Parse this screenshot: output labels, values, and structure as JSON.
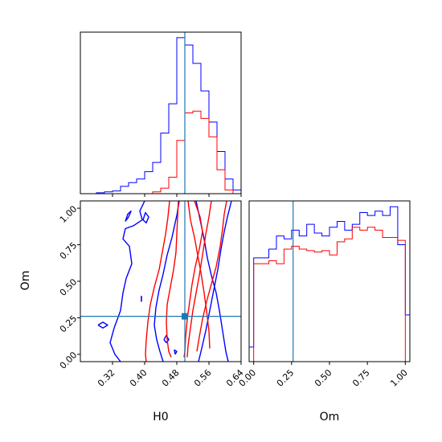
{
  "colors": {
    "series_a": "#0000ff",
    "series_b": "#ff0000",
    "truth": "#1f77b4",
    "axis": "#000000"
  },
  "chart_data": [
    {
      "id": "h0-marginal",
      "type": "histogram",
      "parameter": "H0",
      "truth": 0.5,
      "xlim": [
        0.24,
        0.64
      ],
      "bin_edges": [
        0.24,
        0.26,
        0.28,
        0.3,
        0.32,
        0.34,
        0.36,
        0.38,
        0.4,
        0.42,
        0.44,
        0.46,
        0.48,
        0.5,
        0.52,
        0.54,
        0.56,
        0.58,
        0.6,
        0.62,
        0.64
      ],
      "series": [
        {
          "color": "#0000ff",
          "values": [
            0,
            0,
            0.5,
            1,
            1.5,
            4,
            6,
            8,
            12,
            17,
            33,
            49,
            85,
            81,
            71,
            56,
            39,
            23,
            8,
            2
          ]
        },
        {
          "color": "#ff0000",
          "values": [
            0,
            0,
            0,
            0,
            0,
            0,
            0,
            0,
            0,
            1,
            3,
            9,
            29,
            44,
            45,
            41,
            31,
            13,
            2,
            0
          ]
        }
      ]
    },
    {
      "id": "om-marginal",
      "type": "histogram",
      "parameter": "Om",
      "truth": 0.26,
      "xlim": [
        -0.03,
        1.03
      ],
      "xticks": [
        "0.00",
        "0.25",
        "0.50",
        "0.75",
        "1.00"
      ],
      "xlabel": "Om",
      "bin_edges": [
        -0.03,
        0.0,
        0.05,
        0.1,
        0.15,
        0.2,
        0.25,
        0.3,
        0.35,
        0.4,
        0.45,
        0.5,
        0.55,
        0.6,
        0.65,
        0.7,
        0.75,
        0.8,
        0.85,
        0.9,
        0.95,
        1.0,
        1.03
      ],
      "series": [
        {
          "color": "#0000ff",
          "values": [
            10,
            71,
            71,
            77,
            86,
            84,
            90,
            86,
            94,
            88,
            86,
            92,
            96,
            90,
            94,
            102,
            100,
            103,
            100,
            106,
            80,
            32
          ]
        },
        {
          "color": "#ff0000",
          "values": [
            0,
            67,
            67,
            69,
            67,
            77,
            79,
            77,
            76,
            75,
            76,
            73,
            82,
            84,
            92,
            90,
            92,
            90,
            85,
            85,
            83,
            0
          ]
        }
      ]
    },
    {
      "id": "h0-om-joint",
      "type": "contour",
      "x_parameter": "H0",
      "y_parameter": "Om",
      "truth": {
        "H0": 0.5,
        "Om": 0.26
      },
      "xlim": [
        0.24,
        0.64
      ],
      "ylim": [
        -0.05,
        1.05
      ],
      "xticks": [
        "0.32",
        "0.40",
        "0.48",
        "0.56",
        "0.64"
      ],
      "yticks": [
        "0.00",
        "0.25",
        "0.50",
        "0.75",
        "1.00"
      ],
      "xlabel": "H0",
      "ylabel": "Om",
      "series": [
        {
          "color": "#0000ff",
          "contours": [
            [
              [
                0.486,
                1.05
              ],
              [
                0.48,
                0.95
              ],
              [
                0.468,
                0.8
              ],
              [
                0.456,
                0.68
              ],
              [
                0.446,
                0.55
              ],
              [
                0.436,
                0.44
              ],
              [
                0.428,
                0.32
              ],
              [
                0.424,
                0.2
              ],
              [
                0.43,
                0.1
              ],
              [
                0.438,
                0.02
              ],
              [
                0.446,
                -0.05
              ]
            ],
            [
              [
                0.528,
                1.05
              ],
              [
                0.538,
                0.92
              ],
              [
                0.548,
                0.79
              ],
              [
                0.556,
                0.66
              ],
              [
                0.566,
                0.54
              ],
              [
                0.578,
                0.42
              ],
              [
                0.586,
                0.3
              ],
              [
                0.594,
                0.16
              ],
              [
                0.602,
                0.02
              ],
              [
                0.608,
                -0.05
              ]
            ],
            [
              [
                0.4,
                1.05
              ],
              [
                0.388,
                0.98
              ],
              [
                0.394,
                0.92
              ],
              [
                0.372,
                0.88
              ],
              [
                0.352,
                0.86
              ],
              [
                0.346,
                0.79
              ],
              [
                0.362,
                0.74
              ],
              [
                0.368,
                0.62
              ],
              [
                0.354,
                0.52
              ],
              [
                0.346,
                0.42
              ],
              [
                0.34,
                0.3
              ],
              [
                0.324,
                0.18
              ],
              [
                0.314,
                0.08
              ],
              [
                0.326,
                0.0
              ],
              [
                0.34,
                -0.05
              ]
            ],
            [
              [
                0.616,
                1.05
              ],
              [
                0.606,
                0.94
              ],
              [
                0.598,
                0.84
              ],
              [
                0.59,
                0.72
              ],
              [
                0.582,
                0.58
              ],
              [
                0.572,
                0.44
              ],
              [
                0.562,
                0.3
              ],
              [
                0.552,
                0.16
              ],
              [
                0.542,
                0.04
              ],
              [
                0.534,
                -0.05
              ]
            ],
            [
              [
                0.284,
                0.2
              ],
              [
                0.296,
                0.18
              ],
              [
                0.308,
                0.2
              ],
              [
                0.296,
                0.22
              ],
              [
                0.284,
                0.2
              ]
            ],
            [
              [
                0.352,
                0.91
              ],
              [
                0.36,
                0.94
              ],
              [
                0.366,
                0.98
              ],
              [
                0.358,
                0.96
              ],
              [
                0.352,
                0.91
              ]
            ],
            [
              [
                0.396,
                0.92
              ],
              [
                0.404,
                0.9
              ],
              [
                0.41,
                0.94
              ],
              [
                0.402,
                0.97
              ],
              [
                0.396,
                0.92
              ]
            ],
            [
              [
                0.448,
                0.1
              ],
              [
                0.454,
                0.08
              ],
              [
                0.46,
                0.1
              ],
              [
                0.454,
                0.13
              ],
              [
                0.448,
                0.1
              ]
            ],
            [
              [
                0.476,
                0.0
              ],
              [
                0.48,
                0.02
              ],
              [
                0.474,
                0.03
              ],
              [
                0.476,
                0.0
              ]
            ]
          ],
          "segments": [
            [
              [
                0.392,
                0.4
              ],
              [
                0.392,
                0.36
              ]
            ]
          ]
        },
        {
          "color": "#ff0000",
          "contours": [
            [
              [
                0.462,
                1.05
              ],
              [
                0.458,
                0.94
              ],
              [
                0.452,
                0.82
              ],
              [
                0.444,
                0.7
              ],
              [
                0.436,
                0.58
              ],
              [
                0.424,
                0.46
              ],
              [
                0.414,
                0.34
              ],
              [
                0.408,
                0.22
              ],
              [
                0.404,
                0.1
              ],
              [
                0.402,
                0.0
              ],
              [
                0.404,
                -0.05
              ]
            ],
            [
              [
                0.508,
                1.05
              ],
              [
                0.514,
                0.92
              ],
              [
                0.524,
                0.8
              ],
              [
                0.532,
                0.68
              ],
              [
                0.54,
                0.56
              ],
              [
                0.548,
                0.42
              ],
              [
                0.554,
                0.3
              ],
              [
                0.56,
                0.16
              ],
              [
                0.562,
                0.04
              ]
            ],
            [
              [
                0.484,
                1.05
              ],
              [
                0.482,
                0.94
              ],
              [
                0.48,
                0.82
              ],
              [
                0.478,
                0.7
              ],
              [
                0.472,
                0.58
              ],
              [
                0.464,
                0.46
              ],
              [
                0.456,
                0.34
              ],
              [
                0.454,
                0.22
              ],
              [
                0.456,
                0.1
              ],
              [
                0.46,
                0.02
              ],
              [
                0.466,
                -0.02
              ]
            ],
            [
              [
                0.524,
                1.05
              ],
              [
                0.538,
                0.94
              ],
              [
                0.544,
                0.84
              ],
              [
                0.536,
                0.72
              ],
              [
                0.526,
                0.6
              ],
              [
                0.518,
                0.48
              ],
              [
                0.512,
                0.36
              ],
              [
                0.506,
                0.24
              ],
              [
                0.502,
                0.12
              ],
              [
                0.5,
                0.02
              ],
              [
                0.498,
                -0.02
              ]
            ],
            [
              [
                0.566,
                1.05
              ],
              [
                0.56,
                0.94
              ],
              [
                0.552,
                0.82
              ],
              [
                0.544,
                0.68
              ],
              [
                0.536,
                0.54
              ],
              [
                0.528,
                0.42
              ],
              [
                0.52,
                0.3
              ],
              [
                0.514,
                0.18
              ],
              [
                0.508,
                0.06
              ],
              [
                0.506,
                -0.02
              ]
            ],
            [
              [
                0.604,
                1.05
              ],
              [
                0.598,
                0.96
              ],
              [
                0.594,
                0.86
              ],
              [
                0.588,
                0.74
              ],
              [
                0.578,
                0.6
              ],
              [
                0.566,
                0.48
              ],
              [
                0.554,
                0.36
              ],
              [
                0.544,
                0.24
              ],
              [
                0.536,
                0.12
              ],
              [
                0.53,
                0.02
              ]
            ]
          ],
          "segments": []
        }
      ]
    }
  ]
}
